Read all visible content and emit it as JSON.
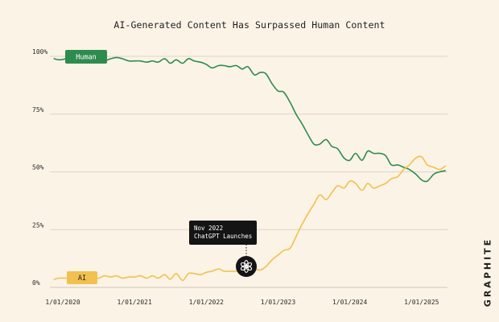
{
  "chart_data": {
    "type": "line",
    "title": "AI-Generated Content Has Surpassed Human Content",
    "x_tick_labels": [
      "1/01/2020",
      "1/01/2021",
      "1/01/2022",
      "1/01/2023",
      "1/01/2024",
      "1/01/2025"
    ],
    "y_tick_labels": [
      "100%",
      "75%",
      "50%",
      "25%",
      "0%"
    ],
    "y_ticks": [
      100,
      75,
      50,
      25,
      0
    ],
    "ylim": [
      0,
      100
    ],
    "xlim": [
      2020.0,
      2025.35
    ],
    "grid": true,
    "series": [
      {
        "name": "Human",
        "color": "#2e8b4f",
        "x": [
          2019.88,
          2019.95,
          2020.05,
          2020.15,
          2020.25,
          2020.33,
          2020.42,
          2020.5,
          2020.58,
          2020.67,
          2020.75,
          2020.83,
          2020.92,
          2021.0,
          2021.08,
          2021.17,
          2021.25,
          2021.33,
          2021.42,
          2021.5,
          2021.58,
          2021.67,
          2021.75,
          2021.83,
          2021.92,
          2022.0,
          2022.08,
          2022.17,
          2022.25,
          2022.33,
          2022.42,
          2022.5,
          2022.58,
          2022.67,
          2022.75,
          2022.83,
          2022.92,
          2023.0,
          2023.08,
          2023.17,
          2023.25,
          2023.33,
          2023.42,
          2023.5,
          2023.58,
          2023.67,
          2023.75,
          2023.83,
          2023.92,
          2024.0,
          2024.08,
          2024.17,
          2024.25,
          2024.33,
          2024.42,
          2024.5,
          2024.58,
          2024.67,
          2024.75,
          2024.83,
          2024.92,
          2025.0,
          2025.08,
          2025.17,
          2025.25,
          2025.33
        ],
        "y": [
          99,
          98.5,
          99,
          99.5,
          99,
          98.5,
          98.5,
          98,
          98,
          99,
          99.5,
          99,
          98,
          98,
          98,
          97.5,
          98,
          97.5,
          99,
          97,
          98.5,
          97,
          99,
          98,
          97.5,
          96.5,
          95,
          96,
          96,
          95.5,
          96,
          94.5,
          95.5,
          92,
          93,
          92.5,
          88,
          85,
          84.5,
          80,
          75,
          71,
          66,
          62,
          62,
          64,
          61,
          60,
          56,
          55,
          58,
          55,
          59,
          58,
          58,
          57,
          53,
          53,
          52,
          51,
          49,
          46.5,
          46,
          49,
          50,
          50.5
        ]
      },
      {
        "name": "AI",
        "color": "#f2c04e",
        "x": [
          2019.88,
          2019.95,
          2020.05,
          2020.15,
          2020.25,
          2020.33,
          2020.42,
          2020.5,
          2020.58,
          2020.67,
          2020.75,
          2020.83,
          2020.92,
          2021.0,
          2021.08,
          2021.17,
          2021.25,
          2021.33,
          2021.42,
          2021.5,
          2021.58,
          2021.67,
          2021.75,
          2021.83,
          2021.92,
          2022.0,
          2022.08,
          2022.17,
          2022.25,
          2022.33,
          2022.42,
          2022.5,
          2022.58,
          2022.67,
          2022.75,
          2022.83,
          2022.92,
          2023.0,
          2023.08,
          2023.17,
          2023.25,
          2023.33,
          2023.42,
          2023.5,
          2023.58,
          2023.67,
          2023.75,
          2023.83,
          2023.92,
          2024.0,
          2024.08,
          2024.17,
          2024.25,
          2024.33,
          2024.42,
          2024.5,
          2024.58,
          2024.67,
          2024.75,
          2024.83,
          2024.92,
          2025.0,
          2025.08,
          2025.17,
          2025.25,
          2025.33
        ],
        "y": [
          3.5,
          4,
          4,
          4,
          4.5,
          4,
          4.5,
          4,
          5,
          4.5,
          5,
          4,
          4.5,
          4.5,
          5,
          4,
          5,
          4,
          5.5,
          3.5,
          6,
          3,
          6,
          6,
          5.5,
          6.5,
          7,
          8,
          7,
          7,
          7,
          8,
          7,
          8,
          7.5,
          9,
          12,
          14,
          16,
          17,
          22,
          27,
          32,
          36,
          40,
          38,
          41,
          44,
          43,
          46,
          45,
          42,
          45,
          43,
          44,
          45,
          47,
          48,
          51,
          53,
          56,
          56.5,
          53,
          52,
          51,
          52.5
        ]
      }
    ],
    "annotation": {
      "lines": [
        "Nov 2022",
        "ChatGPT Launches"
      ],
      "x": 2022.83,
      "y": 8
    }
  },
  "brand": "GRAPHITE",
  "icons": {
    "marker": "openai-logo-icon"
  }
}
